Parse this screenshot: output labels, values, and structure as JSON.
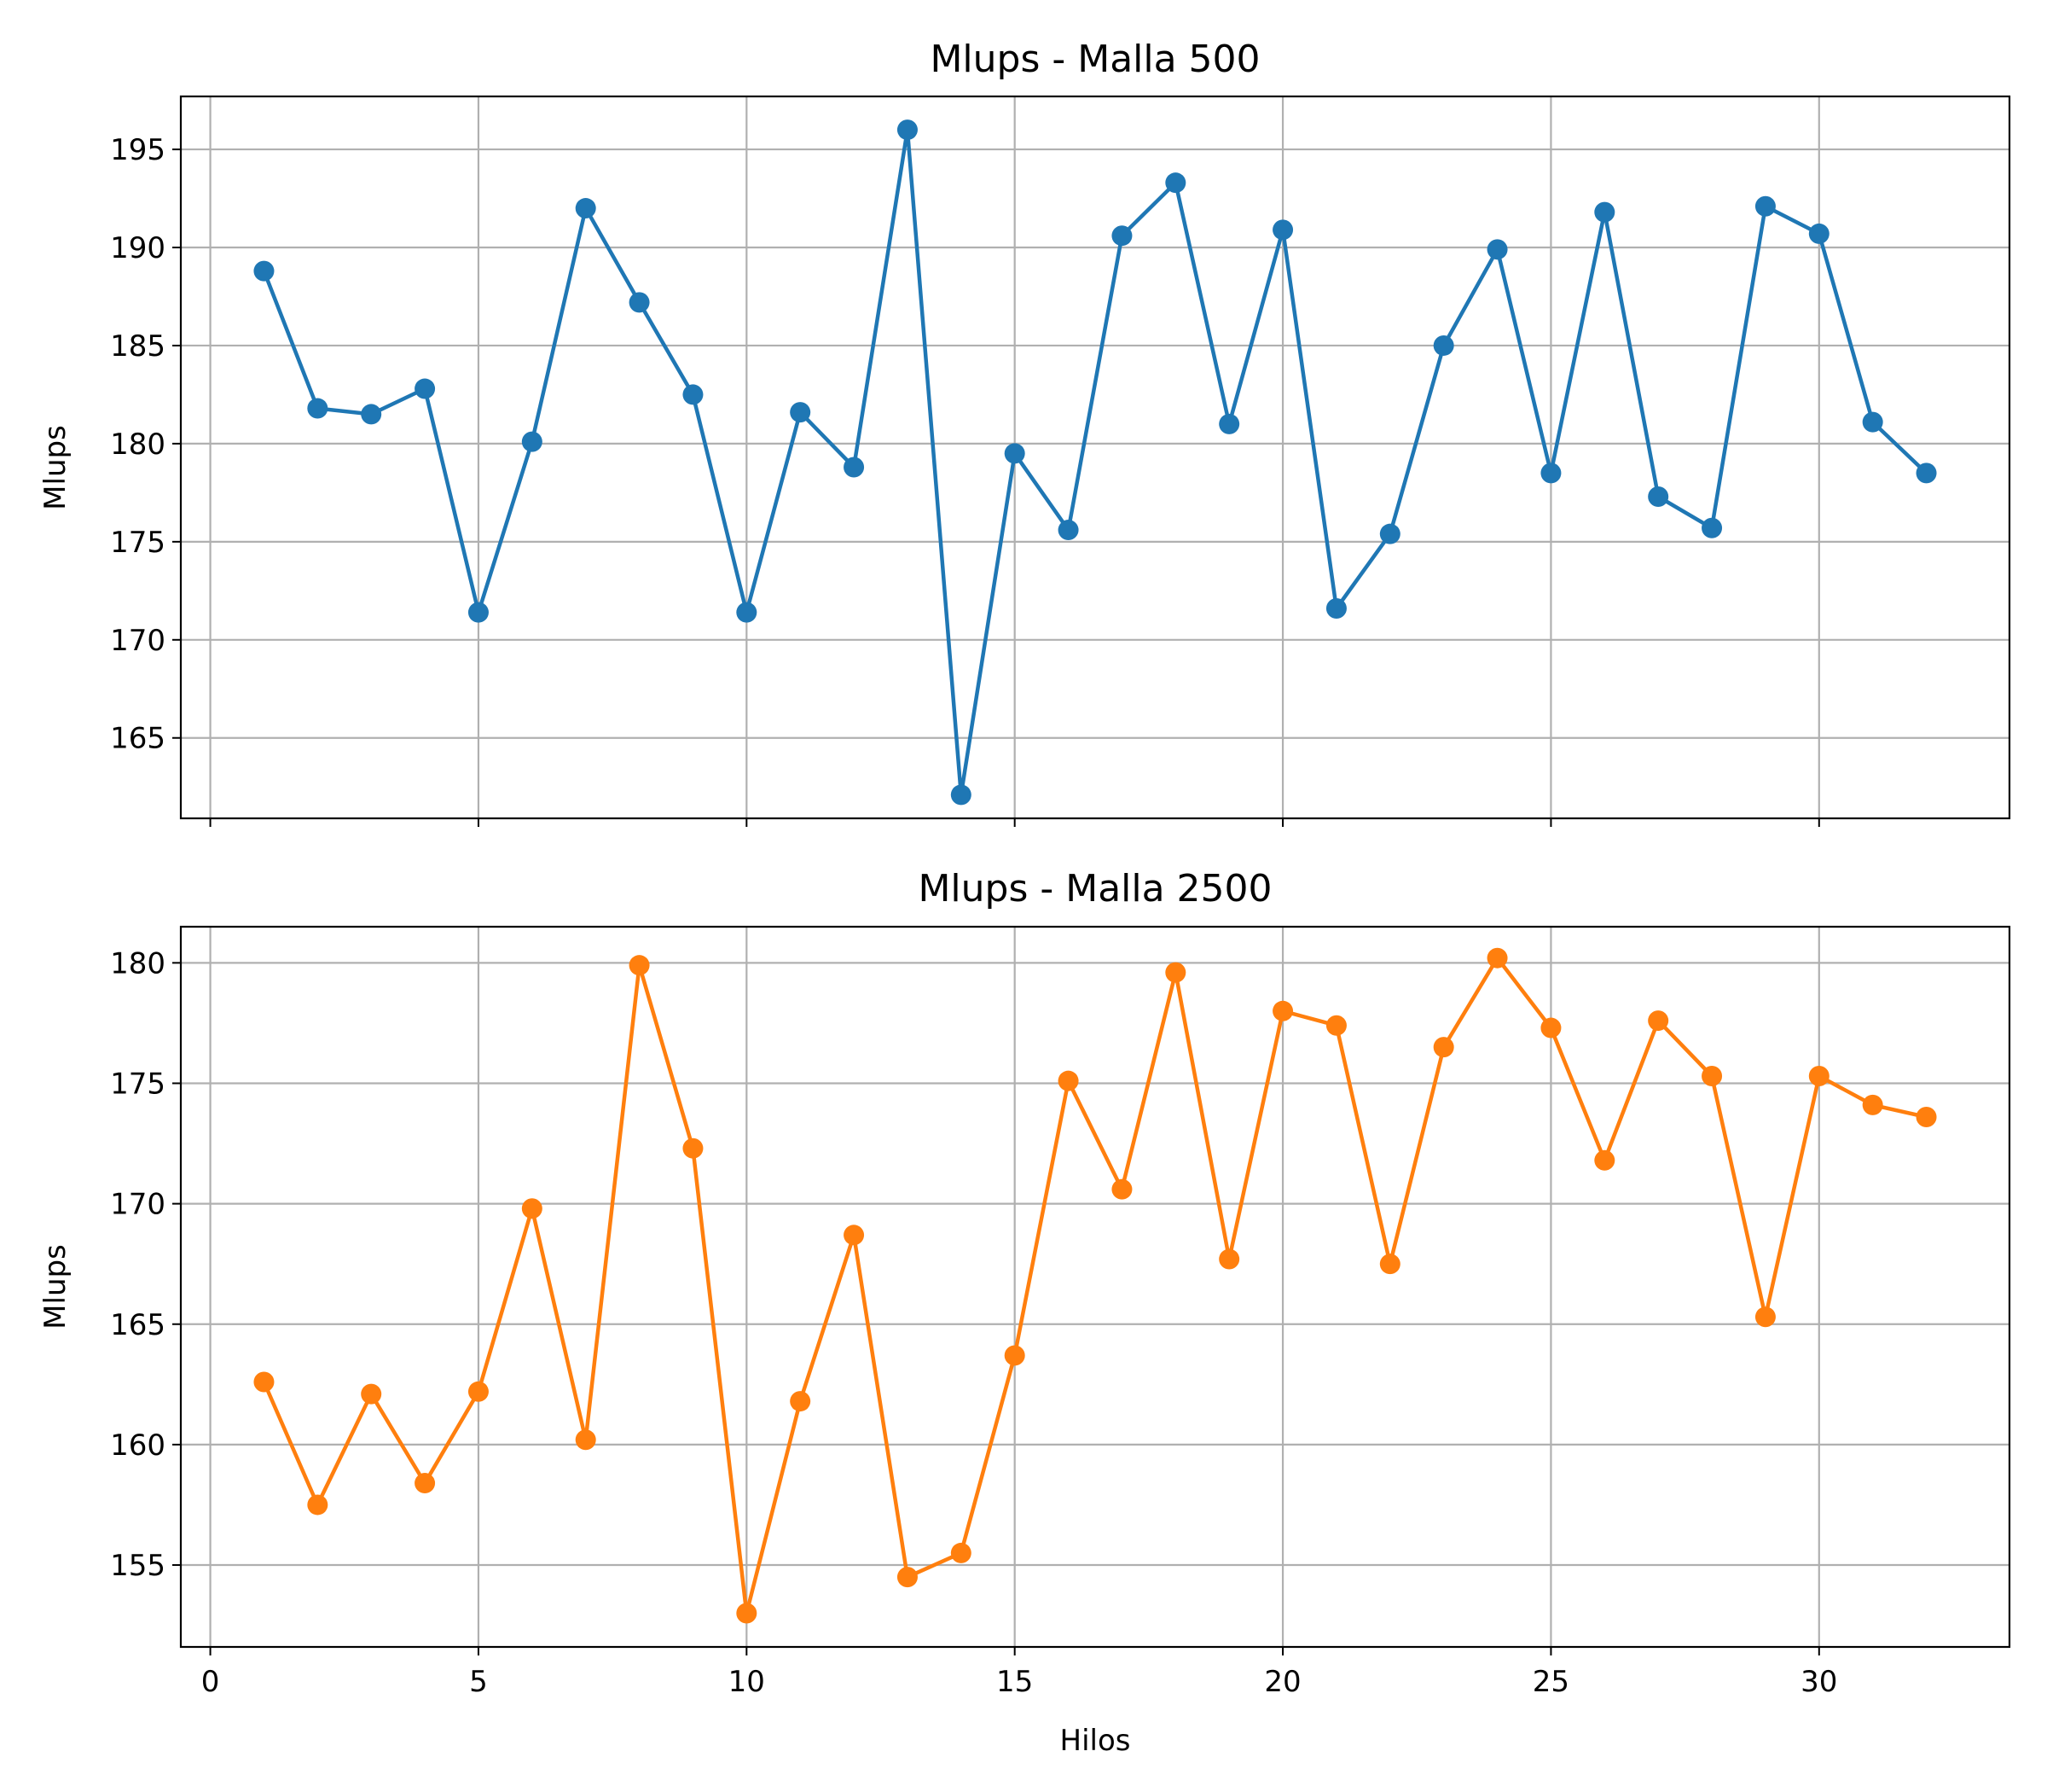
{
  "chart_data": [
    {
      "type": "line",
      "title": "Mlups - Malla 500",
      "xlabel": "",
      "ylabel": "Mlups",
      "xlim": [
        -0.55,
        33.55
      ],
      "ylim": [
        160.9,
        197.7
      ],
      "xticks": [
        0,
        5,
        10,
        15,
        20,
        25,
        30
      ],
      "show_xtick_labels": false,
      "yticks": [
        165,
        170,
        175,
        180,
        185,
        190,
        195
      ],
      "grid": true,
      "color": "#1f77b4",
      "marker": "circle",
      "x": [
        1,
        2,
        3,
        4,
        5,
        6,
        7,
        8,
        9,
        10,
        11,
        12,
        13,
        14,
        15,
        16,
        17,
        18,
        19,
        20,
        21,
        22,
        23,
        24,
        25,
        26,
        27,
        28,
        29,
        30,
        31,
        32
      ],
      "y": [
        188.8,
        181.8,
        181.5,
        182.8,
        171.4,
        180.1,
        192.0,
        187.2,
        182.5,
        171.4,
        181.6,
        178.8,
        196.0,
        162.1,
        179.5,
        175.6,
        190.6,
        193.3,
        181.0,
        190.9,
        171.6,
        175.4,
        185.0,
        189.9,
        178.5,
        191.8,
        177.3,
        175.7,
        192.1,
        190.7,
        181.1,
        178.5
      ]
    },
    {
      "type": "line",
      "title": "Mlups - Malla 2500",
      "xlabel": "Hilos",
      "ylabel": "Mlups",
      "xlim": [
        -0.55,
        33.55
      ],
      "ylim": [
        151.6,
        181.5
      ],
      "xticks": [
        0,
        5,
        10,
        15,
        20,
        25,
        30
      ],
      "show_xtick_labels": true,
      "yticks": [
        155,
        160,
        165,
        170,
        175,
        180
      ],
      "grid": true,
      "color": "#ff7f0e",
      "marker": "circle",
      "x": [
        1,
        2,
        3,
        4,
        5,
        6,
        7,
        8,
        9,
        10,
        11,
        12,
        13,
        14,
        15,
        16,
        17,
        18,
        19,
        20,
        21,
        22,
        23,
        24,
        25,
        26,
        27,
        28,
        29,
        30,
        31,
        32
      ],
      "y": [
        162.6,
        157.5,
        162.1,
        158.4,
        162.2,
        169.8,
        160.2,
        179.9,
        172.3,
        153.0,
        161.8,
        168.7,
        154.5,
        155.5,
        163.7,
        175.1,
        170.6,
        179.6,
        167.7,
        178.0,
        177.4,
        167.5,
        176.5,
        180.2,
        177.3,
        171.8,
        177.6,
        175.3,
        165.3,
        175.3,
        174.1,
        173.6
      ]
    }
  ]
}
